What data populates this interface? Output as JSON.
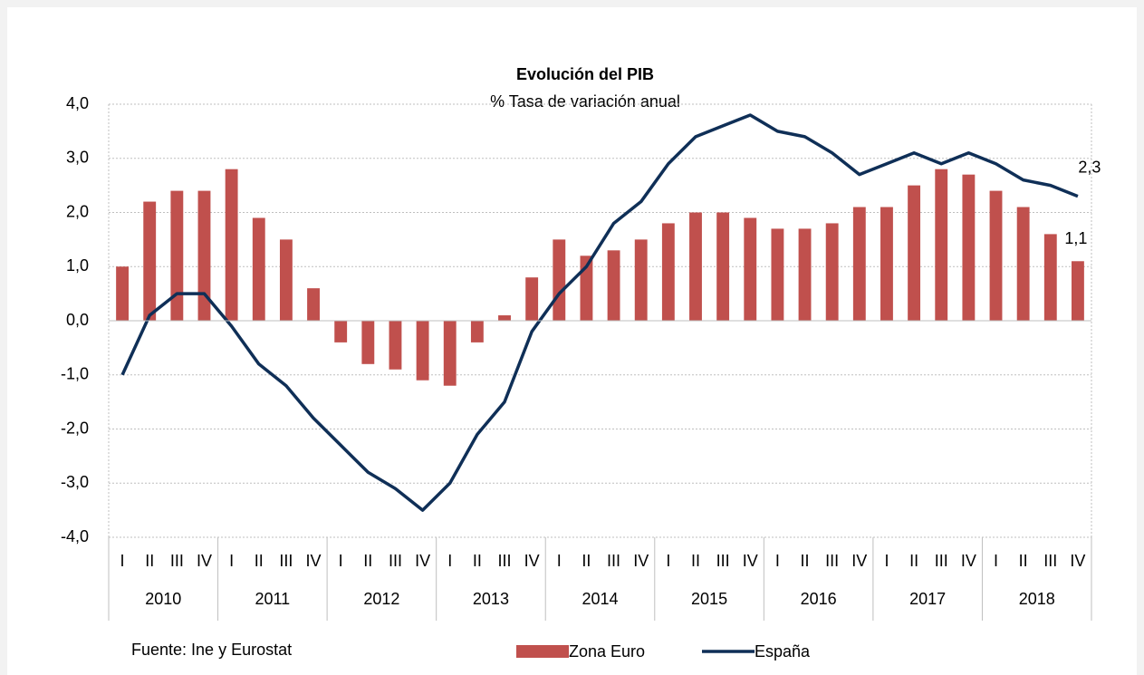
{
  "chart_data": {
    "type": "bar_line",
    "title": "Evolución del PIB",
    "subtitle": "% Tasa de variación anual",
    "source": "Fuente: Ine y  Eurostat",
    "categories": [
      "I",
      "II",
      "III",
      "IV",
      "I",
      "II",
      "III",
      "IV",
      "I",
      "II",
      "III",
      "IV",
      "I",
      "II",
      "III",
      "IV",
      "I",
      "II",
      "III",
      "IV",
      "I",
      "II",
      "III",
      "IV",
      "I",
      "II",
      "III",
      "IV",
      "I",
      "II",
      "III",
      "IV",
      "I",
      "II",
      "III",
      "IV"
    ],
    "groups": [
      "2010",
      "2011",
      "2012",
      "2013",
      "2014",
      "2015",
      "2016",
      "2017",
      "2018"
    ],
    "series": [
      {
        "name": "Zona Euro",
        "type": "bar",
        "color": "#c0504d",
        "values": [
          1.0,
          2.2,
          2.4,
          2.4,
          2.8,
          1.9,
          1.5,
          0.6,
          -0.4,
          -0.8,
          -0.9,
          -1.1,
          -1.2,
          -0.4,
          0.1,
          0.8,
          1.5,
          1.2,
          1.3,
          1.5,
          1.8,
          2.0,
          2.0,
          1.9,
          1.7,
          1.7,
          1.8,
          2.1,
          2.1,
          2.5,
          2.8,
          2.7,
          2.4,
          2.1,
          1.6,
          1.1
        ],
        "value_labels": [
          null,
          null,
          null,
          null,
          null,
          null,
          null,
          null,
          null,
          null,
          null,
          null,
          null,
          null,
          null,
          null,
          null,
          null,
          null,
          null,
          null,
          null,
          null,
          null,
          null,
          null,
          null,
          null,
          null,
          null,
          null,
          null,
          null,
          null,
          null,
          "1,1"
        ]
      },
      {
        "name": "España",
        "type": "line",
        "color": "#0f2f57",
        "values": [
          -1.0,
          0.1,
          0.5,
          0.5,
          -0.1,
          -0.8,
          -1.2,
          -1.8,
          -2.3,
          -2.8,
          -3.1,
          -3.5,
          -3.0,
          -2.1,
          -1.5,
          -0.2,
          0.5,
          1.0,
          1.8,
          2.2,
          2.9,
          3.4,
          3.6,
          3.8,
          3.5,
          3.4,
          3.1,
          2.7,
          2.9,
          3.1,
          2.9,
          3.1,
          2.9,
          2.6,
          2.5,
          2.3
        ],
        "value_labels": [
          null,
          null,
          null,
          null,
          null,
          null,
          null,
          null,
          null,
          null,
          null,
          null,
          null,
          null,
          null,
          null,
          null,
          null,
          null,
          null,
          null,
          null,
          null,
          null,
          null,
          null,
          null,
          null,
          null,
          null,
          null,
          null,
          null,
          null,
          null,
          "2,3"
        ]
      }
    ],
    "ylim": [
      -4,
      4
    ],
    "yticks": [
      {
        "value": -4,
        "label": "-4,0"
      },
      {
        "value": -3,
        "label": "-3,0"
      },
      {
        "value": -2,
        "label": "-2,0"
      },
      {
        "value": -1,
        "label": "-1,0"
      },
      {
        "value": 0,
        "label": "0,0"
      },
      {
        "value": 1,
        "label": "1,0"
      },
      {
        "value": 2,
        "label": "2,0"
      },
      {
        "value": 3,
        "label": "3,0"
      },
      {
        "value": 4,
        "label": "4,0"
      }
    ],
    "grid": true
  }
}
